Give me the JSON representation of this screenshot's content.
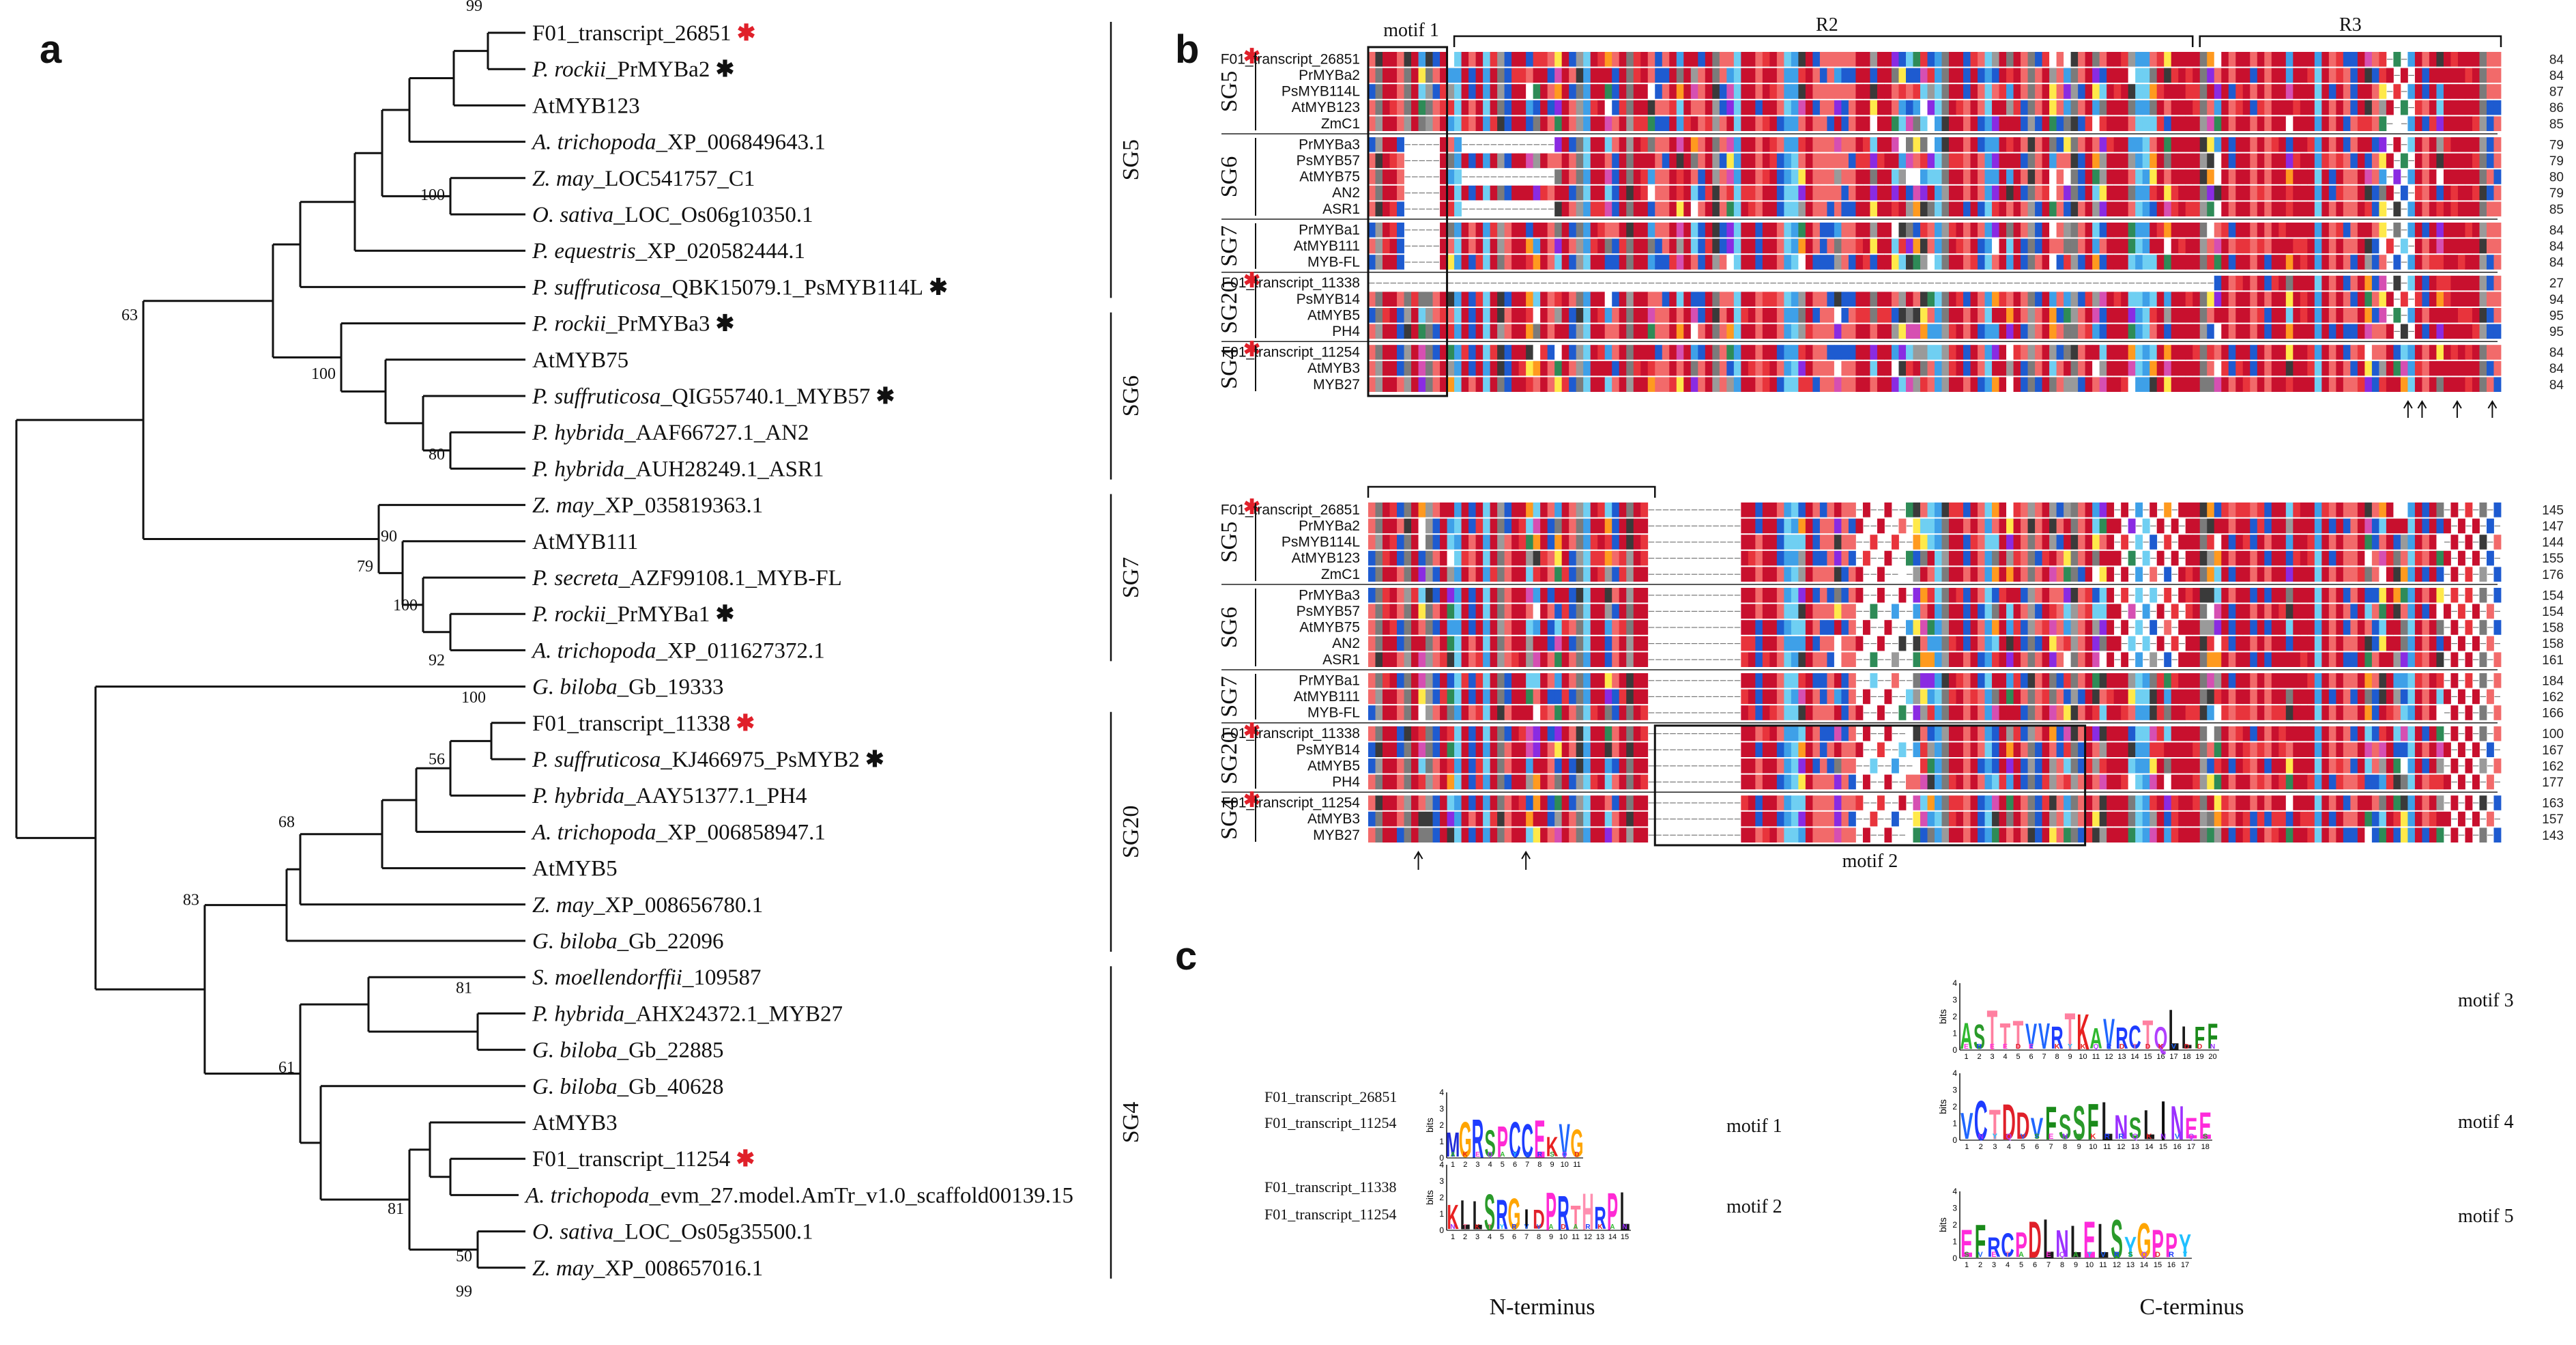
{
  "panel_letters": {
    "a": "a",
    "b": "b",
    "c": "c"
  },
  "tree": {
    "leaves": [
      {
        "prefix": "",
        "italic": "",
        "rest": "F01_transcript_26851",
        "star": "red"
      },
      {
        "prefix": "",
        "italic": "P. rockii",
        "rest": "_PrMYBa2",
        "star": "black"
      },
      {
        "prefix": "AtMYB123",
        "italic": "",
        "rest": "",
        "star": ""
      },
      {
        "prefix": "",
        "italic": "A. trichopoda",
        "rest": "_XP_006849643.1",
        "star": ""
      },
      {
        "prefix": "",
        "italic": "Z. may",
        "rest": "_LOC541757_C1",
        "star": ""
      },
      {
        "prefix": "",
        "italic": "O. sativa",
        "rest": "_LOC_Os06g10350.1",
        "star": ""
      },
      {
        "prefix": "",
        "italic": "P. equestris",
        "rest": "_XP_020582444.1",
        "star": ""
      },
      {
        "prefix": "",
        "italic": "P. suffruticosa",
        "rest": "_QBK15079.1_PsMYB114L",
        "star": "black"
      },
      {
        "prefix": "",
        "italic": "P. rockii",
        "rest": "_PrMYBa3",
        "star": "black"
      },
      {
        "prefix": "AtMYB75",
        "italic": "",
        "rest": "",
        "star": ""
      },
      {
        "prefix": "",
        "italic": "P. suffruticosa",
        "rest": "_QIG55740.1_MYB57",
        "star": "black"
      },
      {
        "prefix": "",
        "italic": "P. hybrida",
        "rest": "_AAF66727.1_AN2",
        "star": ""
      },
      {
        "prefix": "",
        "italic": "P. hybrida",
        "rest": "_AUH28249.1_ASR1",
        "star": ""
      },
      {
        "prefix": "",
        "italic": "Z. may",
        "rest": "_XP_035819363.1",
        "star": ""
      },
      {
        "prefix": "AtMYB111",
        "italic": "",
        "rest": "",
        "star": ""
      },
      {
        "prefix": "",
        "italic": "P. secreta",
        "rest": "_AZF99108.1_MYB-FL",
        "star": ""
      },
      {
        "prefix": "",
        "italic": "P. rockii",
        "rest": "_PrMYBa1",
        "star": "black"
      },
      {
        "prefix": "",
        "italic": "A. trichopoda",
        "rest": "_XP_011627372.1",
        "star": ""
      },
      {
        "prefix": "",
        "italic": "G. biloba",
        "rest": "_Gb_19333",
        "star": ""
      },
      {
        "prefix": "",
        "italic": "",
        "rest": "F01_transcript_11338",
        "star": "red"
      },
      {
        "prefix": "",
        "italic": "P. suffruticosa",
        "rest": "_KJ466975_PsMYB2",
        "star": "black"
      },
      {
        "prefix": "",
        "italic": "P. hybrida",
        "rest": "_AAY51377.1_PH4",
        "star": ""
      },
      {
        "prefix": "",
        "italic": "A. trichopoda",
        "rest": "_XP_006858947.1",
        "star": ""
      },
      {
        "prefix": "AtMYB5",
        "italic": "",
        "rest": "",
        "star": ""
      },
      {
        "prefix": "",
        "italic": "Z. may",
        "rest": "_XP_008656780.1",
        "star": ""
      },
      {
        "prefix": "",
        "italic": "G. biloba",
        "rest": "_Gb_22096",
        "star": ""
      },
      {
        "prefix": "",
        "italic": "S. moellendorffii",
        "rest": "_109587",
        "star": ""
      },
      {
        "prefix": "",
        "italic": "P. hybrida",
        "rest": "_AHX24372.1_MYB27",
        "star": ""
      },
      {
        "prefix": "",
        "italic": "G. biloba",
        "rest": "_Gb_22885",
        "star": ""
      },
      {
        "prefix": "",
        "italic": "G. biloba",
        "rest": "_Gb_40628",
        "star": ""
      },
      {
        "prefix": "AtMYB3",
        "italic": "",
        "rest": "",
        "star": ""
      },
      {
        "prefix": "",
        "italic": "",
        "rest": "F01_transcript_11254",
        "star": "red"
      },
      {
        "prefix": "",
        "italic": "A. trichopoda",
        "rest": "_evm_27.model.AmTr_v1.0_scaffold00139.15",
        "star": ""
      },
      {
        "prefix": "",
        "italic": "O. sativa",
        "rest": "_LOC_Os05g35500.1",
        "star": ""
      },
      {
        "prefix": "",
        "italic": "Z. may",
        "rest": "_XP_008657016.1",
        "star": ""
      }
    ],
    "bootstrap": [
      "99",
      "100",
      "63",
      "100",
      "80",
      "90",
      "79",
      "100",
      "92",
      "100",
      "56",
      "68",
      "83",
      "81",
      "61",
      "81",
      "50",
      "99"
    ],
    "groups": [
      "SG5",
      "SG6",
      "SG7",
      "SG20",
      "SG4"
    ]
  },
  "alignment": {
    "top_headers": {
      "motif1": "motif 1",
      "r2": "R2",
      "r3": "R3"
    },
    "bottom_motif2": "motif 2",
    "top_groups": [
      {
        "name": "SG5",
        "rows": [
          {
            "name": "F01_transcript_26851",
            "star": true,
            "num": "84"
          },
          {
            "name": "PrMYBa2",
            "num": "84"
          },
          {
            "name": "PsMYB114L",
            "num": "87"
          },
          {
            "name": "AtMYB123",
            "num": "86"
          },
          {
            "name": "ZmC1",
            "num": "85"
          }
        ]
      },
      {
        "name": "SG6",
        "rows": [
          {
            "name": "PrMYBa3",
            "num": "79"
          },
          {
            "name": "PsMYB57",
            "num": "79"
          },
          {
            "name": "AtMYB75",
            "num": "80"
          },
          {
            "name": "AN2",
            "num": "79"
          },
          {
            "name": "ASR1",
            "num": "85"
          }
        ]
      },
      {
        "name": "SG7",
        "rows": [
          {
            "name": "PrMYBa1",
            "num": "84"
          },
          {
            "name": "AtMYB111",
            "num": "84"
          },
          {
            "name": "MYB-FL",
            "num": "84"
          }
        ]
      },
      {
        "name": "SG20",
        "rows": [
          {
            "name": "F01_transcript_11338",
            "star": true,
            "num": "27"
          },
          {
            "name": "PsMYB14",
            "num": "94"
          },
          {
            "name": "AtMYB5",
            "num": "95"
          },
          {
            "name": "PH4",
            "num": "95"
          }
        ]
      },
      {
        "name": "SG4",
        "rows": [
          {
            "name": "F01_transcript_11254",
            "star": true,
            "num": "84"
          },
          {
            "name": "AtMYB3",
            "num": "84"
          },
          {
            "name": "MYB27",
            "num": "84"
          }
        ]
      }
    ],
    "bottom_groups": [
      {
        "name": "SG5",
        "rows": [
          {
            "name": "F01_transcript_26851",
            "star": true,
            "num": "145"
          },
          {
            "name": "PrMYBa2",
            "num": "147"
          },
          {
            "name": "PsMYB114L",
            "num": "144"
          },
          {
            "name": "AtMYB123",
            "num": "155"
          },
          {
            "name": "ZmC1",
            "num": "176"
          }
        ]
      },
      {
        "name": "SG6",
        "rows": [
          {
            "name": "PrMYBa3",
            "num": "154"
          },
          {
            "name": "PsMYB57",
            "num": "154"
          },
          {
            "name": "AtMYB75",
            "num": "158"
          },
          {
            "name": "AN2",
            "num": "158"
          },
          {
            "name": "ASR1",
            "num": "161"
          }
        ]
      },
      {
        "name": "SG7",
        "rows": [
          {
            "name": "PrMYBa1",
            "num": "184"
          },
          {
            "name": "AtMYB111",
            "num": "162"
          },
          {
            "name": "MYB-FL",
            "num": "166"
          }
        ]
      },
      {
        "name": "SG20",
        "rows": [
          {
            "name": "F01_transcript_11338",
            "star": true,
            "num": "100"
          },
          {
            "name": "PsMYB14",
            "num": "167"
          },
          {
            "name": "AtMYB5",
            "num": "162"
          },
          {
            "name": "PH4",
            "num": "177"
          }
        ]
      },
      {
        "name": "SG4",
        "rows": [
          {
            "name": "F01_transcript_11254",
            "star": true,
            "num": "163"
          },
          {
            "name": "AtMYB3",
            "num": "157"
          },
          {
            "name": "MYB27",
            "num": "143"
          }
        ]
      }
    ]
  },
  "motifs_panel": {
    "nterm_rows_1": [
      "F01_transcript_26851",
      "F01_transcript_11254"
    ],
    "nterm_rows_2": [
      "F01_transcript_11338",
      "F01_transcript_11254"
    ],
    "logos": [
      {
        "label": "motif 1",
        "consensus": "MGRSPCCEKVG"
      },
      {
        "label": "motif 2",
        "consensus": "KLLSRGIDPRTHRPL"
      },
      {
        "label": "motif 3",
        "consensus": "ASTTTVVRTKAVRCTQLLFF"
      },
      {
        "label": "motif 4",
        "consensus": "VCTDDVFSSFLNSLINEE"
      },
      {
        "label": "motif 5",
        "consensus": "EFRCPDLNLELSYGPPY"
      }
    ],
    "axis_unit": "bits",
    "terminus": {
      "n": "N-terminus",
      "c": "C-terminus"
    }
  }
}
